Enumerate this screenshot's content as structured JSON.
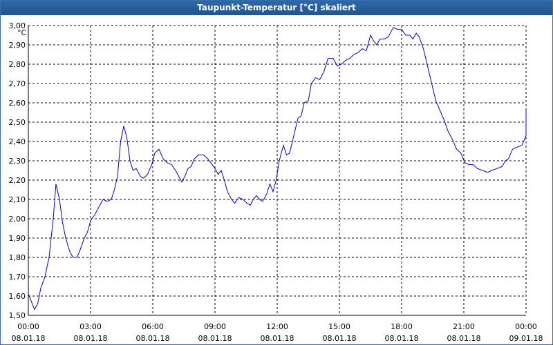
{
  "window": {
    "title": "Taupunkt-Temperatur [°C] skaliert"
  },
  "chart_data": {
    "type": "line",
    "title": "Taupunkt-Temperatur [°C] skaliert",
    "ylabel": "°C",
    "xlabel": "",
    "grid": true,
    "line_color": "#0000cc",
    "grid_color": "#000000",
    "ylim": [
      1.5,
      3.0
    ],
    "xlim_hours": [
      0,
      24
    ],
    "y_ticks": [
      {
        "value": 1.5,
        "label": "1,50"
      },
      {
        "value": 1.6,
        "label": "1,60"
      },
      {
        "value": 1.7,
        "label": "1,70"
      },
      {
        "value": 1.8,
        "label": "1,80"
      },
      {
        "value": 1.9,
        "label": "1,90"
      },
      {
        "value": 2.0,
        "label": "2,00"
      },
      {
        "value": 2.1,
        "label": "2,10"
      },
      {
        "value": 2.2,
        "label": "2,20"
      },
      {
        "value": 2.3,
        "label": "2,30"
      },
      {
        "value": 2.4,
        "label": "2,40"
      },
      {
        "value": 2.5,
        "label": "2,50"
      },
      {
        "value": 2.6,
        "label": "2,60"
      },
      {
        "value": 2.7,
        "label": "2,70"
      },
      {
        "value": 2.8,
        "label": "2,80"
      },
      {
        "value": 2.9,
        "label": "2,90"
      },
      {
        "value": 3.0,
        "label": "3,00"
      }
    ],
    "x_ticks": [
      {
        "hour": 0,
        "time": "00:00",
        "date": "08.01.18"
      },
      {
        "hour": 3,
        "time": "03:00",
        "date": "08.01.18"
      },
      {
        "hour": 6,
        "time": "06:00",
        "date": "08.01.18"
      },
      {
        "hour": 9,
        "time": "09:00",
        "date": "08.01.18"
      },
      {
        "hour": 12,
        "time": "12:00",
        "date": "08.01.18"
      },
      {
        "hour": 15,
        "time": "15:00",
        "date": "08.01.18"
      },
      {
        "hour": 18,
        "time": "18:00",
        "date": "08.01.18"
      },
      {
        "hour": 21,
        "time": "21:00",
        "date": "08.01.18"
      },
      {
        "hour": 24,
        "time": "00:00",
        "date": "09.01.18"
      }
    ],
    "series": [
      {
        "points": [
          [
            0.0,
            1.61
          ],
          [
            0.15,
            1.57
          ],
          [
            0.3,
            1.53
          ],
          [
            0.45,
            1.56
          ],
          [
            0.6,
            1.64
          ],
          [
            0.8,
            1.7
          ],
          [
            1.0,
            1.8
          ],
          [
            1.2,
            2.0
          ],
          [
            1.33,
            2.18
          ],
          [
            1.5,
            2.1
          ],
          [
            1.65,
            1.98
          ],
          [
            1.8,
            1.9
          ],
          [
            2.0,
            1.83
          ],
          [
            2.15,
            1.8
          ],
          [
            2.35,
            1.8
          ],
          [
            2.5,
            1.84
          ],
          [
            2.7,
            1.9
          ],
          [
            2.85,
            1.93
          ],
          [
            3.0,
            1.99
          ],
          [
            3.2,
            2.02
          ],
          [
            3.4,
            2.06
          ],
          [
            3.6,
            2.1
          ],
          [
            3.8,
            2.09
          ],
          [
            4.0,
            2.1
          ],
          [
            4.15,
            2.15
          ],
          [
            4.3,
            2.22
          ],
          [
            4.45,
            2.4
          ],
          [
            4.6,
            2.48
          ],
          [
            4.75,
            2.42
          ],
          [
            4.9,
            2.3
          ],
          [
            5.05,
            2.25
          ],
          [
            5.2,
            2.26
          ],
          [
            5.4,
            2.22
          ],
          [
            5.55,
            2.21
          ],
          [
            5.75,
            2.23
          ],
          [
            5.95,
            2.28
          ],
          [
            6.1,
            2.34
          ],
          [
            6.3,
            2.36
          ],
          [
            6.5,
            2.31
          ],
          [
            6.7,
            2.29
          ],
          [
            6.9,
            2.28
          ],
          [
            7.1,
            2.25
          ],
          [
            7.3,
            2.21
          ],
          [
            7.4,
            2.19
          ],
          [
            7.55,
            2.22
          ],
          [
            7.7,
            2.26
          ],
          [
            7.85,
            2.27
          ],
          [
            8.0,
            2.31
          ],
          [
            8.2,
            2.33
          ],
          [
            8.45,
            2.33
          ],
          [
            8.65,
            2.31
          ],
          [
            8.8,
            2.29
          ],
          [
            9.0,
            2.26
          ],
          [
            9.15,
            2.23
          ],
          [
            9.3,
            2.25
          ],
          [
            9.45,
            2.2
          ],
          [
            9.6,
            2.14
          ],
          [
            9.8,
            2.1
          ],
          [
            9.95,
            2.08
          ],
          [
            10.15,
            2.11
          ],
          [
            10.35,
            2.1
          ],
          [
            10.55,
            2.08
          ],
          [
            10.7,
            2.07
          ],
          [
            10.85,
            2.1
          ],
          [
            11.0,
            2.12
          ],
          [
            11.15,
            2.1
          ],
          [
            11.3,
            2.09
          ],
          [
            11.5,
            2.13
          ],
          [
            11.65,
            2.18
          ],
          [
            11.8,
            2.14
          ],
          [
            11.95,
            2.2
          ],
          [
            12.1,
            2.3
          ],
          [
            12.3,
            2.38
          ],
          [
            12.45,
            2.33
          ],
          [
            12.6,
            2.34
          ],
          [
            12.8,
            2.43
          ],
          [
            13.0,
            2.52
          ],
          [
            13.15,
            2.53
          ],
          [
            13.3,
            2.6
          ],
          [
            13.5,
            2.61
          ],
          [
            13.65,
            2.7
          ],
          [
            13.85,
            2.73
          ],
          [
            14.05,
            2.72
          ],
          [
            14.25,
            2.76
          ],
          [
            14.45,
            2.83
          ],
          [
            14.7,
            2.83
          ],
          [
            14.9,
            2.79
          ],
          [
            15.1,
            2.8
          ],
          [
            15.3,
            2.82
          ],
          [
            15.5,
            2.83
          ],
          [
            15.7,
            2.85
          ],
          [
            15.9,
            2.86
          ],
          [
            16.1,
            2.88
          ],
          [
            16.3,
            2.87
          ],
          [
            16.5,
            2.95
          ],
          [
            16.65,
            2.92
          ],
          [
            16.8,
            2.9
          ],
          [
            16.95,
            2.93
          ],
          [
            17.15,
            2.93
          ],
          [
            17.35,
            2.94
          ],
          [
            17.6,
            2.99
          ],
          [
            17.8,
            2.98
          ],
          [
            18.0,
            2.98
          ],
          [
            18.2,
            2.95
          ],
          [
            18.4,
            2.95
          ],
          [
            18.55,
            2.93
          ],
          [
            18.7,
            2.96
          ],
          [
            18.85,
            2.94
          ],
          [
            19.05,
            2.88
          ],
          [
            19.25,
            2.79
          ],
          [
            19.45,
            2.7
          ],
          [
            19.65,
            2.61
          ],
          [
            19.85,
            2.56
          ],
          [
            20.05,
            2.51
          ],
          [
            20.25,
            2.45
          ],
          [
            20.45,
            2.41
          ],
          [
            20.65,
            2.36
          ],
          [
            20.85,
            2.34
          ],
          [
            21.05,
            2.29
          ],
          [
            21.25,
            2.28
          ],
          [
            21.45,
            2.28
          ],
          [
            21.65,
            2.26
          ],
          [
            21.9,
            2.25
          ],
          [
            22.15,
            2.24
          ],
          [
            22.35,
            2.25
          ],
          [
            22.6,
            2.26
          ],
          [
            22.85,
            2.27
          ],
          [
            23.0,
            2.3
          ],
          [
            23.15,
            2.31
          ],
          [
            23.35,
            2.36
          ],
          [
            23.55,
            2.37
          ],
          [
            23.8,
            2.38
          ],
          [
            24.0,
            2.43
          ],
          [
            24.2,
            2.47
          ],
          [
            24.35,
            2.5
          ],
          [
            24.55,
            2.53
          ],
          [
            24.7,
            2.57
          ]
        ]
      }
    ]
  }
}
